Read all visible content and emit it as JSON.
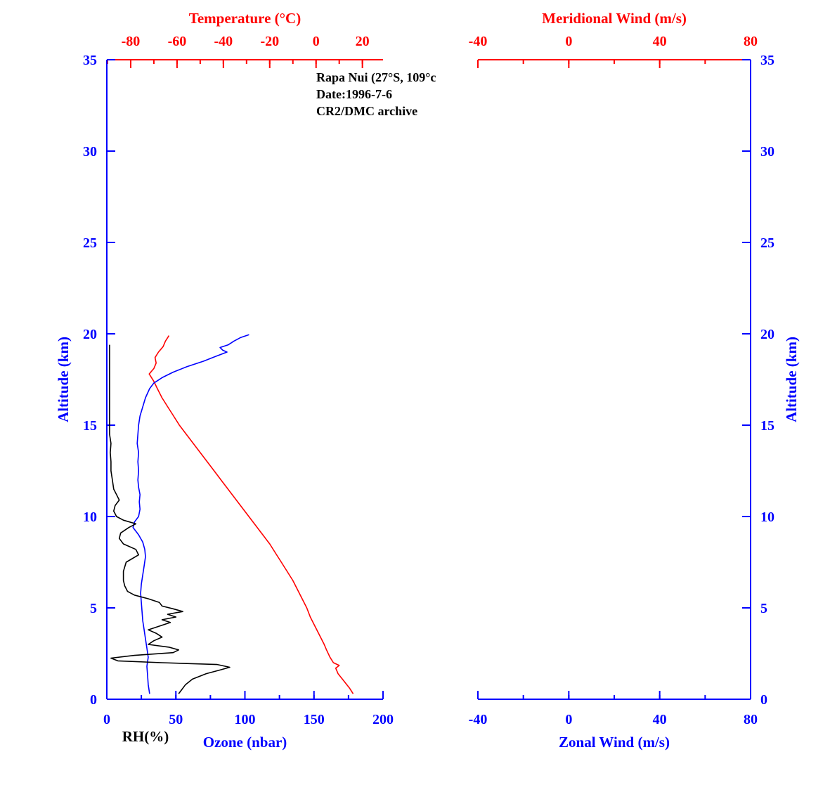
{
  "annotation": {
    "line1": "Rapa Nui (27°S, 109°c",
    "line2": "Date:1996-7-6",
    "line3": "CR2/DMC archive"
  },
  "colors": {
    "temperature": "#ff0000",
    "ozone": "#0000ff",
    "relative_humidity": "#000000",
    "red_axis": "#ff0000",
    "blue_axis": "#0000ff"
  },
  "chart_data": [
    {
      "type": "line",
      "panel": "left",
      "points_format": "[altitude_km, value]",
      "axes": {
        "top": {
          "label": "Temperature (°C)",
          "color": "#ff0000",
          "range": [
            -90.3,
            28.9
          ],
          "major_ticks": [
            -80,
            -60,
            -40,
            -20,
            0,
            20
          ],
          "minor_step": 10
        },
        "bottom": {
          "label": "Ozone (nbar)",
          "secondary_label": "RH(%)",
          "secondary_color": "#000000",
          "color": "#0000ff",
          "range": [
            0,
            200
          ],
          "major_ticks": [
            0,
            50,
            100,
            150,
            200
          ],
          "minor_step": 25
        },
        "left": {
          "label": "Altitude (km)",
          "color": "#0000ff",
          "range": [
            0,
            35
          ],
          "major_ticks": [
            0,
            5,
            10,
            15,
            20,
            25,
            30,
            35
          ]
        }
      },
      "series": [
        {
          "name": "temperature",
          "x_axis": "top",
          "units": "°C",
          "color": "#ff0000",
          "points": [
            [
              0.3,
              16
            ],
            [
              0.6,
              14.5
            ],
            [
              1.0,
              12
            ],
            [
              1.4,
              9.5
            ],
            [
              1.7,
              8.5
            ],
            [
              1.85,
              10
            ],
            [
              2.0,
              7.5
            ],
            [
              2.3,
              6
            ],
            [
              2.7,
              4.5
            ],
            [
              3.0,
              3.5
            ],
            [
              3.5,
              1.5
            ],
            [
              4.0,
              -0.5
            ],
            [
              4.5,
              -2.5
            ],
            [
              5.0,
              -4
            ],
            [
              5.5,
              -6
            ],
            [
              6.0,
              -8
            ],
            [
              6.5,
              -10
            ],
            [
              7.0,
              -12.5
            ],
            [
              7.5,
              -15
            ],
            [
              8.0,
              -17.5
            ],
            [
              8.5,
              -20
            ],
            [
              9.0,
              -23
            ],
            [
              9.5,
              -26
            ],
            [
              10.0,
              -29
            ],
            [
              10.5,
              -32
            ],
            [
              11.0,
              -35
            ],
            [
              11.5,
              -38
            ],
            [
              12.0,
              -41
            ],
            [
              12.5,
              -44
            ],
            [
              13.0,
              -47
            ],
            [
              13.5,
              -50
            ],
            [
              14.0,
              -53
            ],
            [
              14.5,
              -56
            ],
            [
              15.0,
              -59
            ],
            [
              15.5,
              -61.5
            ],
            [
              16.0,
              -64
            ],
            [
              16.5,
              -66.5
            ],
            [
              17.0,
              -68.5
            ],
            [
              17.4,
              -70
            ],
            [
              17.8,
              -72
            ],
            [
              18.1,
              -70
            ],
            [
              18.4,
              -69
            ],
            [
              18.7,
              -69.5
            ],
            [
              19.0,
              -68
            ],
            [
              19.3,
              -66
            ],
            [
              19.6,
              -65
            ],
            [
              19.9,
              -63.5
            ]
          ]
        },
        {
          "name": "ozone",
          "x_axis": "bottom",
          "units": "nbar",
          "color": "#0000ff",
          "points": [
            [
              0.3,
              31
            ],
            [
              0.8,
              30
            ],
            [
              1.3,
              29.5
            ],
            [
              1.8,
              29
            ],
            [
              2.3,
              30
            ],
            [
              2.8,
              29
            ],
            [
              3.3,
              28
            ],
            [
              3.8,
              27
            ],
            [
              4.3,
              26
            ],
            [
              4.8,
              25.5
            ],
            [
              5.3,
              25
            ],
            [
              5.8,
              24.5
            ],
            [
              6.3,
              25
            ],
            [
              6.8,
              26
            ],
            [
              7.3,
              27
            ],
            [
              7.8,
              28
            ],
            [
              8.2,
              27.5
            ],
            [
              8.6,
              26
            ],
            [
              9.0,
              23
            ],
            [
              9.4,
              19
            ],
            [
              9.7,
              20
            ],
            [
              10.0,
              23
            ],
            [
              10.4,
              24
            ],
            [
              10.8,
              23.5
            ],
            [
              11.2,
              24
            ],
            [
              11.6,
              23
            ],
            [
              12.0,
              22.5
            ],
            [
              12.5,
              23
            ],
            [
              13.0,
              22.5
            ],
            [
              13.5,
              23
            ],
            [
              14.0,
              22
            ],
            [
              14.5,
              22.5
            ],
            [
              15.0,
              23
            ],
            [
              15.5,
              24
            ],
            [
              16.0,
              26
            ],
            [
              16.5,
              28
            ],
            [
              17.0,
              31
            ],
            [
              17.3,
              34
            ],
            [
              17.6,
              40
            ],
            [
              17.9,
              48
            ],
            [
              18.2,
              58
            ],
            [
              18.5,
              70
            ],
            [
              18.8,
              80
            ],
            [
              19.0,
              87
            ],
            [
              19.1,
              84
            ],
            [
              19.25,
              82
            ],
            [
              19.4,
              88
            ],
            [
              19.6,
              92
            ],
            [
              19.8,
              97
            ],
            [
              19.95,
              103
            ]
          ]
        },
        {
          "name": "relative_humidity",
          "x_axis": "bottom",
          "units": "%",
          "color": "#000000",
          "points": [
            [
              0.3,
              52
            ],
            [
              0.5,
              54
            ],
            [
              0.8,
              57
            ],
            [
              1.1,
              62
            ],
            [
              1.4,
              72
            ],
            [
              1.6,
              82
            ],
            [
              1.75,
              89
            ],
            [
              1.9,
              80
            ],
            [
              2.0,
              40
            ],
            [
              2.1,
              8
            ],
            [
              2.25,
              3
            ],
            [
              2.4,
              20
            ],
            [
              2.55,
              48
            ],
            [
              2.7,
              52
            ],
            [
              2.85,
              45
            ],
            [
              3.0,
              30
            ],
            [
              3.2,
              34
            ],
            [
              3.4,
              40
            ],
            [
              3.6,
              36
            ],
            [
              3.8,
              30
            ],
            [
              4.0,
              38
            ],
            [
              4.2,
              46
            ],
            [
              4.35,
              40
            ],
            [
              4.5,
              50
            ],
            [
              4.65,
              44
            ],
            [
              4.8,
              55
            ],
            [
              4.95,
              48
            ],
            [
              5.1,
              40
            ],
            [
              5.3,
              38
            ],
            [
              5.5,
              30
            ],
            [
              5.7,
              20
            ],
            [
              5.9,
              15
            ],
            [
              6.2,
              13
            ],
            [
              6.5,
              12
            ],
            [
              7.0,
              12
            ],
            [
              7.5,
              14
            ],
            [
              7.9,
              23
            ],
            [
              8.2,
              21
            ],
            [
              8.5,
              12
            ],
            [
              8.8,
              9
            ],
            [
              9.1,
              10
            ],
            [
              9.4,
              16
            ],
            [
              9.6,
              21
            ],
            [
              9.8,
              12
            ],
            [
              10.0,
              7
            ],
            [
              10.3,
              5
            ],
            [
              10.6,
              6
            ],
            [
              10.9,
              9
            ],
            [
              11.2,
              7
            ],
            [
              11.5,
              5
            ],
            [
              12.0,
              4
            ],
            [
              12.5,
              3
            ],
            [
              13.0,
              3
            ],
            [
              13.5,
              2.5
            ],
            [
              14.0,
              3
            ],
            [
              14.5,
              2
            ],
            [
              15.0,
              2
            ],
            [
              15.5,
              2
            ],
            [
              16.0,
              2
            ],
            [
              16.5,
              2
            ],
            [
              17.0,
              2
            ],
            [
              17.5,
              2
            ],
            [
              18.0,
              2
            ],
            [
              18.5,
              2
            ],
            [
              19.0,
              2
            ],
            [
              19.4,
              2
            ]
          ]
        }
      ]
    },
    {
      "type": "line",
      "panel": "right",
      "points_format": "[altitude_km, value]",
      "axes": {
        "top": {
          "label": "Meridional Wind (m/s)",
          "color": "#ff0000",
          "range": [
            -40,
            80
          ],
          "major_ticks": [
            -40,
            0,
            40,
            80
          ],
          "minor_step": 20
        },
        "bottom": {
          "label": "Zonal Wind (m/s)",
          "color": "#0000ff",
          "range": [
            -40,
            80
          ],
          "major_ticks": [
            -40,
            0,
            40,
            80
          ],
          "minor_step": 20
        },
        "right": {
          "label": "Altitude (km)",
          "color": "#0000ff",
          "range": [
            0,
            35
          ],
          "major_ticks": [
            0,
            5,
            10,
            15,
            20,
            25,
            30,
            35
          ]
        }
      },
      "series": []
    }
  ]
}
